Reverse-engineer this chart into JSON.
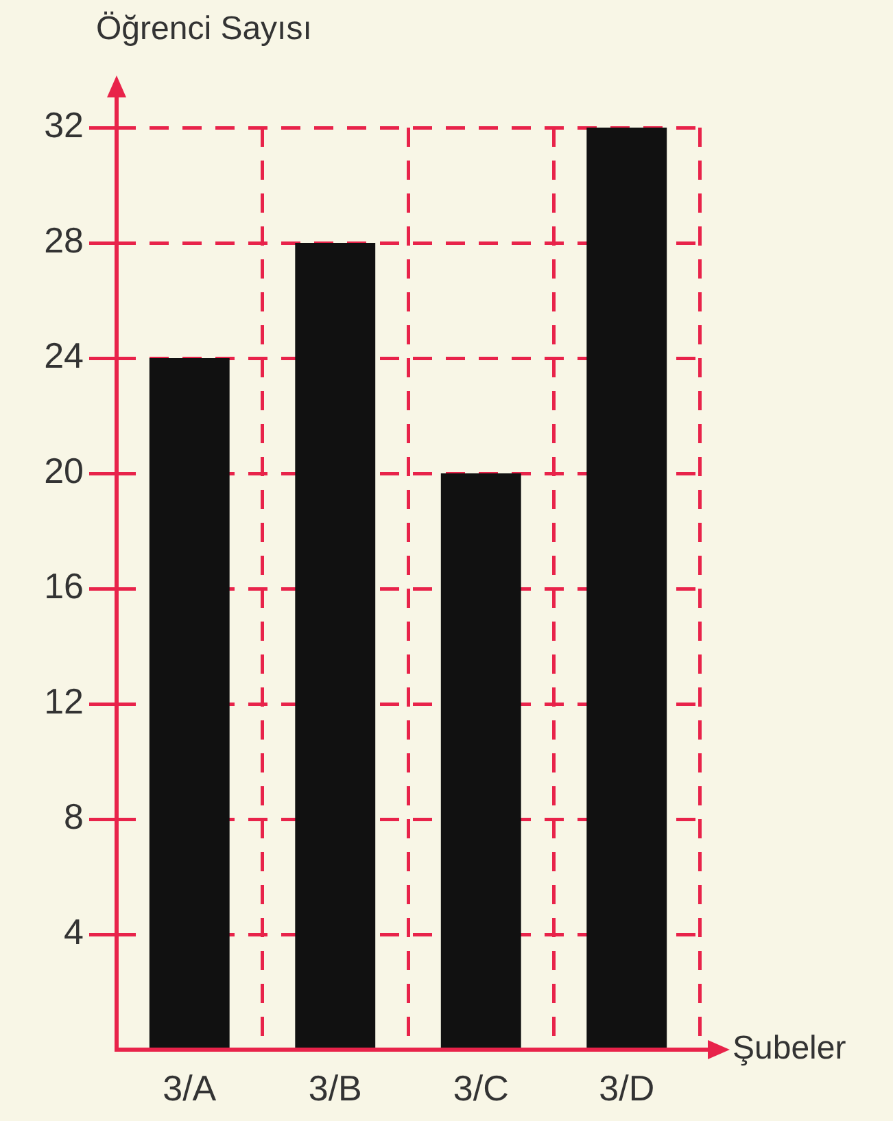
{
  "chart_data": {
    "type": "bar",
    "xlabel": "Şubeler",
    "ylabel": "Öğrenci Sayısı",
    "categories": [
      "3/A",
      "3/B",
      "3/C",
      "3/D"
    ],
    "values": [
      24,
      28,
      20,
      32
    ],
    "color": "#111111",
    "ylim": [
      0,
      32
    ],
    "yticks": [
      4,
      8,
      12,
      16,
      20,
      24,
      28,
      32
    ],
    "grid": true
  }
}
